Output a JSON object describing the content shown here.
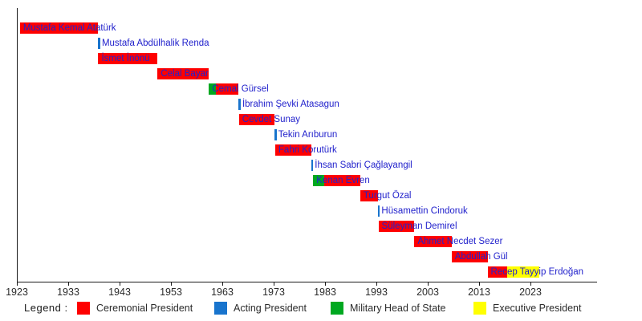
{
  "chart_data": {
    "type": "timeline_gantt",
    "title": "Presidents of Turkey timeline (1923–2023)",
    "xlabel": "",
    "ylabel": "",
    "grid": false,
    "x_axis": {
      "tick_years": [
        1923,
        1933,
        1943,
        1953,
        1963,
        1973,
        1983,
        1993,
        2003,
        2013,
        2023
      ],
      "min_year": 1923,
      "axis_extends_to_year": 2036
    },
    "series": [
      {
        "name": "Mustafa Kemal Atatürk",
        "segments": [
          {
            "start": 1923.6,
            "end": 1938.85,
            "role": "ceremonial"
          }
        ]
      },
      {
        "name": "Mustafa Abdülhalik Renda",
        "segments": [
          {
            "start": 1938.85,
            "end": 1938.9,
            "role": "acting"
          }
        ]
      },
      {
        "name": "İsmet İnönü",
        "segments": [
          {
            "start": 1938.85,
            "end": 1950.4,
            "role": "ceremonial"
          }
        ]
      },
      {
        "name": "Celal Bayar",
        "segments": [
          {
            "start": 1950.4,
            "end": 1960.4,
            "role": "ceremonial"
          }
        ]
      },
      {
        "name": "Cemal Gürsel",
        "segments": [
          {
            "start": 1960.4,
            "end": 1961.8,
            "role": "military"
          },
          {
            "start": 1961.8,
            "end": 1966.2,
            "role": "ceremonial"
          }
        ]
      },
      {
        "name": "İbrahim Şevki Atasagun",
        "segments": [
          {
            "start": 1966.2,
            "end": 1966.3,
            "role": "acting"
          }
        ]
      },
      {
        "name": "Cevdet Sunay",
        "segments": [
          {
            "start": 1966.25,
            "end": 1973.2,
            "role": "ceremonial"
          }
        ]
      },
      {
        "name": "Tekin Arıburun",
        "segments": [
          {
            "start": 1973.2,
            "end": 1973.3,
            "role": "acting"
          }
        ]
      },
      {
        "name": "Fahri Korutürk",
        "segments": [
          {
            "start": 1973.3,
            "end": 1980.3,
            "role": "ceremonial"
          }
        ]
      },
      {
        "name": "İhsan Sabri Çağlayangil",
        "segments": [
          {
            "start": 1980.3,
            "end": 1980.7,
            "role": "acting"
          }
        ]
      },
      {
        "name": "Kenan Evren",
        "segments": [
          {
            "start": 1980.7,
            "end": 1982.85,
            "role": "military"
          },
          {
            "start": 1982.85,
            "end": 1989.85,
            "role": "ceremonial"
          }
        ]
      },
      {
        "name": "Turgut Özal",
        "segments": [
          {
            "start": 1989.85,
            "end": 1993.3,
            "role": "ceremonial"
          }
        ]
      },
      {
        "name": "Hüsamettin Cindoruk",
        "segments": [
          {
            "start": 1993.3,
            "end": 1993.4,
            "role": "acting"
          }
        ]
      },
      {
        "name": "Süleyman Demirel",
        "segments": [
          {
            "start": 1993.4,
            "end": 2000.4,
            "role": "ceremonial"
          }
        ]
      },
      {
        "name": "Ahmet Necdet Sezer",
        "segments": [
          {
            "start": 2000.4,
            "end": 2007.65,
            "role": "ceremonial"
          }
        ]
      },
      {
        "name": "Abdullah Gül",
        "segments": [
          {
            "start": 2007.65,
            "end": 2014.65,
            "role": "ceremonial"
          }
        ]
      },
      {
        "name": "Recep Tayyip Erdoğan",
        "segments": [
          {
            "start": 2014.65,
            "end": 2018.5,
            "role": "ceremonial"
          },
          {
            "start": 2018.5,
            "end": 2024.7,
            "role": "executive"
          }
        ]
      }
    ]
  },
  "legend": {
    "title": "Legend :",
    "items": [
      {
        "label": "Ceremonial President",
        "role": "ceremonial"
      },
      {
        "label": "Acting President",
        "role": "acting"
      },
      {
        "label": "Military Head of State",
        "role": "military"
      },
      {
        "label": "Executive President",
        "role": "executive"
      }
    ]
  },
  "colors": {
    "ceremonial": "#fe0000",
    "acting": "#1874cd",
    "military": "#00a820",
    "executive": "#ffff00",
    "bar_label_text": "#2222cc",
    "axis": "#1a1a1a"
  }
}
